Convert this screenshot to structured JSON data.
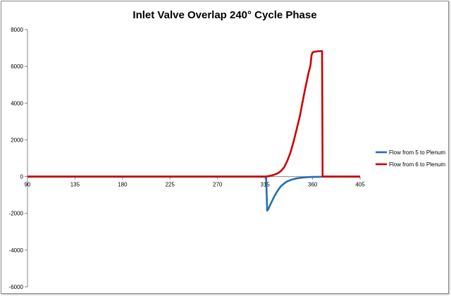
{
  "chart_data": {
    "type": "line",
    "title": "Inlet Valve Overlap 240° Cycle Phase",
    "xlabel": "",
    "ylabel": "",
    "xlim": [
      90,
      405
    ],
    "ylim": [
      -6000,
      8000
    ],
    "x_ticks": [
      90,
      135,
      180,
      225,
      270,
      315,
      360,
      405
    ],
    "y_ticks": [
      -6000,
      -4000,
      -2000,
      0,
      2000,
      4000,
      6000,
      8000
    ],
    "grid": false,
    "legend_position": "right",
    "series": [
      {
        "name": "Flow from 5 to Plenum",
        "color": "#1f6fb4",
        "points": [
          [
            90,
            0
          ],
          [
            316,
            0
          ],
          [
            316.5,
            -900
          ],
          [
            317,
            -1850
          ],
          [
            318,
            -1780
          ],
          [
            319,
            -1650
          ],
          [
            320,
            -1520
          ],
          [
            322,
            -1280
          ],
          [
            324,
            -1050
          ],
          [
            326,
            -850
          ],
          [
            328,
            -680
          ],
          [
            330,
            -520
          ],
          [
            333,
            -380
          ],
          [
            336,
            -260
          ],
          [
            340,
            -170
          ],
          [
            344,
            -110
          ],
          [
            348,
            -70
          ],
          [
            352,
            -45
          ],
          [
            356,
            -30
          ],
          [
            360,
            -20
          ],
          [
            364,
            -15
          ],
          [
            368,
            -10
          ],
          [
            370,
            0
          ],
          [
            405,
            0
          ]
        ]
      },
      {
        "name": "Flow from 6 to Plenum",
        "color": "#cc0000",
        "points": [
          [
            90,
            0
          ],
          [
            315,
            0
          ],
          [
            318,
            20
          ],
          [
            321,
            60
          ],
          [
            324,
            110
          ],
          [
            327,
            180
          ],
          [
            330,
            300
          ],
          [
            333,
            500
          ],
          [
            336,
            850
          ],
          [
            339,
            1300
          ],
          [
            342,
            1900
          ],
          [
            345,
            2600
          ],
          [
            348,
            3300
          ],
          [
            350,
            3900
          ],
          [
            352,
            4500
          ],
          [
            354,
            5050
          ],
          [
            356,
            5600
          ],
          [
            358,
            6050
          ],
          [
            359,
            6600
          ],
          [
            360,
            6760
          ],
          [
            362,
            6800
          ],
          [
            364,
            6810
          ],
          [
            366,
            6830
          ],
          [
            369,
            6830
          ],
          [
            369.5,
            0
          ],
          [
            405,
            0
          ]
        ]
      }
    ]
  }
}
